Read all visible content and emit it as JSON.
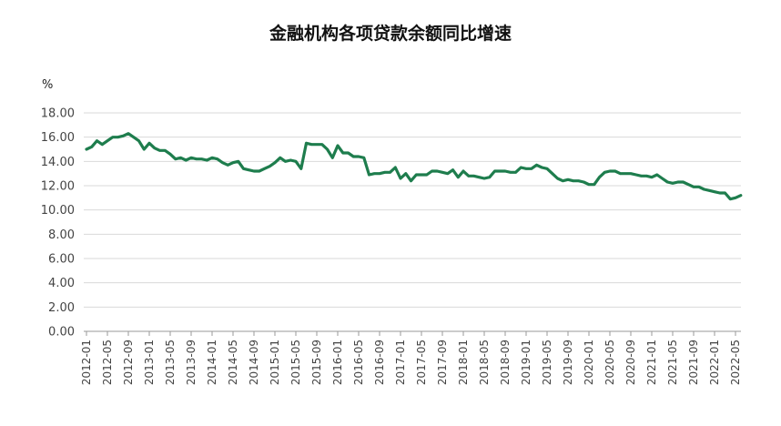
{
  "chart_data": {
    "type": "line",
    "title": "金融机构各项贷款余额同比增速",
    "ylabel": "%",
    "ylim": [
      0,
      18
    ],
    "yticks": [
      "18.00",
      "16.00",
      "14.00",
      "12.00",
      "10.00",
      "8.00",
      "6.00",
      "4.00",
      "2.00",
      "0.00"
    ],
    "xticks": [
      "2012-01",
      "2012-05",
      "2012-09",
      "2013-01",
      "2013-05",
      "2013-09",
      "2014-01",
      "2014-05",
      "2014-09",
      "2015-01",
      "2015-05",
      "2015-09",
      "2016-01",
      "2016-05",
      "2016-09",
      "2017-01",
      "2017-05",
      "2017-09",
      "2018-01",
      "2018-05",
      "2018-09",
      "2019-01",
      "2019-05",
      "2019-09",
      "2020-01",
      "2020-05",
      "2020-09",
      "2021-01",
      "2021-05",
      "2021-09",
      "2022-01",
      "2022-05"
    ],
    "grid": true,
    "line_color": "#1e7d4d",
    "series": [
      {
        "x": [
          "2012-01",
          "2012-02",
          "2012-03",
          "2012-04",
          "2012-05",
          "2012-06",
          "2012-07",
          "2012-08",
          "2012-09",
          "2012-10",
          "2012-11",
          "2012-12",
          "2013-01",
          "2013-02",
          "2013-03",
          "2013-04",
          "2013-05",
          "2013-06",
          "2013-07",
          "2013-08",
          "2013-09",
          "2013-10",
          "2013-11",
          "2013-12",
          "2014-01",
          "2014-02",
          "2014-03",
          "2014-04",
          "2014-05",
          "2014-06",
          "2014-07",
          "2014-08",
          "2014-09",
          "2014-10",
          "2014-11",
          "2014-12",
          "2015-01",
          "2015-02",
          "2015-03",
          "2015-04",
          "2015-05",
          "2015-06",
          "2015-07",
          "2015-08",
          "2015-09",
          "2015-10",
          "2015-11",
          "2015-12",
          "2016-01",
          "2016-02",
          "2016-03",
          "2016-04",
          "2016-05",
          "2016-06",
          "2016-07",
          "2016-08",
          "2016-09",
          "2016-10",
          "2016-11",
          "2016-12",
          "2017-01",
          "2017-02",
          "2017-03",
          "2017-04",
          "2017-05",
          "2017-06",
          "2017-07",
          "2017-08",
          "2017-09",
          "2017-10",
          "2017-11",
          "2017-12",
          "2018-01",
          "2018-02",
          "2018-03",
          "2018-04",
          "2018-05",
          "2018-06",
          "2018-07",
          "2018-08",
          "2018-09",
          "2018-10",
          "2018-11",
          "2018-12",
          "2019-01",
          "2019-02",
          "2019-03",
          "2019-04",
          "2019-05",
          "2019-06",
          "2019-07",
          "2019-08",
          "2019-09",
          "2019-10",
          "2019-11",
          "2019-12",
          "2020-01",
          "2020-02",
          "2020-03",
          "2020-04",
          "2020-05",
          "2020-06",
          "2020-07",
          "2020-08",
          "2020-09",
          "2020-10",
          "2020-11",
          "2020-12",
          "2021-01",
          "2021-02",
          "2021-03",
          "2021-04",
          "2021-05",
          "2021-06",
          "2021-07",
          "2021-08",
          "2021-09",
          "2021-10",
          "2021-11",
          "2021-12",
          "2022-01",
          "2022-02",
          "2022-03",
          "2022-04",
          "2022-05",
          "2022-06"
        ],
        "values": [
          15.0,
          15.2,
          15.7,
          15.4,
          15.7,
          16.0,
          16.0,
          16.1,
          16.3,
          16.0,
          15.7,
          15.0,
          15.5,
          15.1,
          14.9,
          14.9,
          14.6,
          14.2,
          14.3,
          14.1,
          14.3,
          14.2,
          14.2,
          14.1,
          14.3,
          14.2,
          13.9,
          13.7,
          13.9,
          14.0,
          13.4,
          13.3,
          13.2,
          13.2,
          13.4,
          13.6,
          13.9,
          14.3,
          14.0,
          14.1,
          14.0,
          13.4,
          15.5,
          15.4,
          15.4,
          15.4,
          15.0,
          14.3,
          15.3,
          14.7,
          14.7,
          14.4,
          14.4,
          14.3,
          12.9,
          13.0,
          13.0,
          13.1,
          13.1,
          13.5,
          12.6,
          13.0,
          12.4,
          12.9,
          12.9,
          12.9,
          13.2,
          13.2,
          13.1,
          13.0,
          13.3,
          12.7,
          13.2,
          12.8,
          12.8,
          12.7,
          12.6,
          12.7,
          13.2,
          13.2,
          13.2,
          13.1,
          13.1,
          13.5,
          13.4,
          13.4,
          13.7,
          13.5,
          13.4,
          13.0,
          12.6,
          12.4,
          12.5,
          12.4,
          12.4,
          12.3,
          12.1,
          12.1,
          12.7,
          13.1,
          13.2,
          13.2,
          13.0,
          13.0,
          13.0,
          12.9,
          12.8,
          12.8,
          12.7,
          12.9,
          12.6,
          12.3,
          12.2,
          12.3,
          12.3,
          12.1,
          11.9,
          11.9,
          11.7,
          11.6,
          11.5,
          11.4,
          11.4,
          10.9,
          11.0,
          11.2
        ]
      }
    ]
  }
}
